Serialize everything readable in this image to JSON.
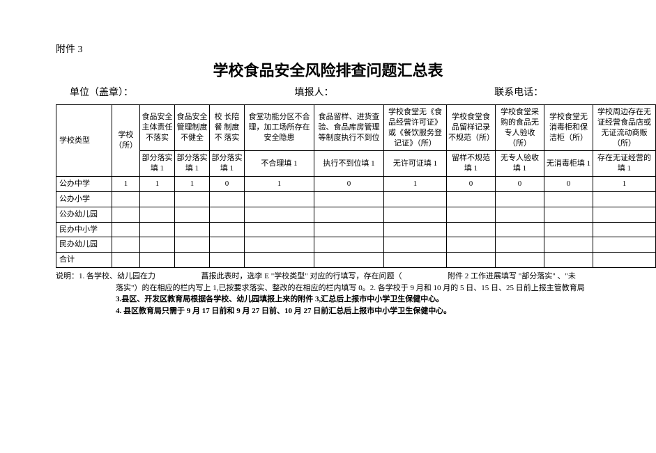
{
  "attachment": "附件 3",
  "title": "学校食品安全风险排查问题汇总表",
  "header": {
    "unit_label": "单位（盖章）：",
    "reporter_label": "填报人：",
    "phone_label": "联系电话："
  },
  "columns": {
    "c0": "学校类型",
    "c1": "学校（所）",
    "c2": "食品安全主体责任不落实",
    "c3": "食品安全管理制度不健全",
    "c4": "校 长陪 餐 制度 不 落实",
    "c5": "食堂功能分区不合理，加工场所存在安全隐患",
    "c6": "食品留样、进货查验、食品库房管理等制度执行不到位",
    "c7": "学校食堂无《食品经营许可证》或《餐饮服务登记证》（所）",
    "c8": "学校食堂食品留样记录不规范（所）",
    "c9": "学校食堂采购的食品无专人验收（所）",
    "c10": "学校食堂无消毒柜和保洁柜（所）",
    "c11": "学校周边存在无证经营食品店或无证流动商贩（所）"
  },
  "subheaders": {
    "s2": "部分落实填 1",
    "s3": "部分落实填 1",
    "s4": "部分落实填 1",
    "s5": "不合理填 1",
    "s6": "执行不到位填 1",
    "s7": "无许可证填 1",
    "s8": "留样不规范填 1",
    "s9": "无专人验收填 1",
    "s10": "无消毒柜填 1",
    "s11": "存在无证经营的填 1"
  },
  "rows": [
    {
      "label": "公办中学",
      "v": [
        "1",
        "1",
        "1",
        "0",
        "1",
        "0",
        "1",
        "0",
        "0",
        "0",
        "1"
      ]
    },
    {
      "label": "公办小学",
      "v": [
        "",
        "",
        "",
        "",
        "",
        "",
        "",
        "",
        "",
        "",
        ""
      ]
    },
    {
      "label": "公办幼儿园",
      "v": [
        "",
        "",
        "",
        "",
        "",
        "",
        "",
        "",
        "",
        "",
        ""
      ]
    },
    {
      "label": "民办中小学",
      "v": [
        "",
        "",
        "",
        "",
        "",
        "",
        "",
        "",
        "",
        "",
        ""
      ]
    },
    {
      "label": "民办幼儿园",
      "v": [
        "",
        "",
        "",
        "",
        "",
        "",
        "",
        "",
        "",
        "",
        ""
      ]
    },
    {
      "label": "合计",
      "v": [
        "",
        "",
        "",
        "",
        "",
        "",
        "",
        "",
        "",
        "",
        ""
      ]
    }
  ],
  "notes": {
    "n1a": "说明：1. 各学校、幼儿园在力",
    "n1b": "菖报此表时，选李 E \"学校类型\" 对应的行填写，存在问题（",
    "n1c": "附件 2 工作进展填写 \"部分落实\" 、\"未",
    "n2": "落实\"）的在相应的栏内写上 1,已按要求落实、整改的在相应的栏内填写 0。2. 各学校于 9 月和 10 月的 5 日、15 日、25 日前上报主管教育局",
    "n3": "3.县区、开发区教育局根据各学校、幼儿园填报上来的附件 3,汇总后上报市中小学卫生保健中心。",
    "n4": "4. 县区教育局只需于 9 月 17 日前和 9 月 27 日前、10 月 27 日前汇总后上报市中小学卫生保健中心。"
  },
  "widths": [
    "80",
    "40",
    "50",
    "50",
    "50",
    "100",
    "100",
    "90",
    "70",
    "70",
    "70",
    "90"
  ]
}
